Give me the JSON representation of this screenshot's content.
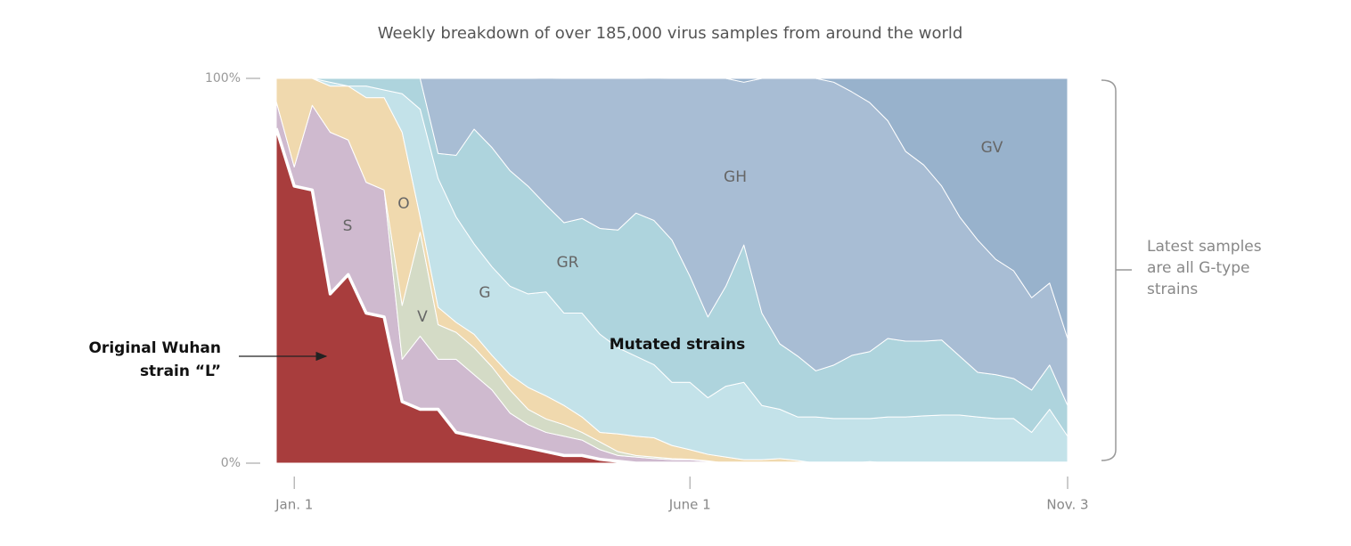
{
  "chart_data": {
    "type": "stacked_area",
    "title": "Weekly breakdown of over 185,000 virus samples from around the world",
    "categories": [
      null,
      "Jan. 1",
      null,
      null,
      null,
      null,
      null,
      null,
      null,
      null,
      null,
      null,
      null,
      null,
      null,
      null,
      null,
      null,
      null,
      null,
      null,
      null,
      null,
      "June 1",
      null,
      null,
      null,
      null,
      null,
      null,
      null,
      null,
      null,
      null,
      null,
      null,
      null,
      null,
      null,
      null,
      null,
      null,
      null,
      null,
      "Nov. 3"
    ],
    "ylim": [
      0,
      100
    ],
    "yticks": [
      {
        "value": 0,
        "label": "0%"
      },
      {
        "value": 100,
        "label": "100%"
      }
    ],
    "series": [
      {
        "color": "#a83d3d",
        "values": [
          87,
          72,
          71,
          44,
          49,
          39,
          38,
          16,
          14,
          14,
          8,
          7,
          6,
          5,
          4,
          3,
          2,
          2,
          1,
          0.5,
          0,
          0,
          0,
          0,
          0,
          0,
          0,
          0,
          0,
          0,
          0,
          0,
          0,
          0,
          0,
          0,
          0,
          0,
          0,
          0,
          0,
          0,
          0,
          0,
          0
        ]
      },
      {
        "name": "S",
        "color": "#cfbacf",
        "values": [
          7,
          5,
          22,
          42,
          35,
          34,
          33,
          11,
          19,
          13,
          19,
          16,
          13,
          8,
          6,
          5,
          5,
          4,
          2.5,
          1.5,
          1.6,
          1.2,
          0.9,
          0.9,
          0.5,
          0,
          0,
          0,
          0,
          0,
          0,
          0,
          0,
          0,
          0,
          0,
          0,
          0,
          0,
          0,
          0,
          0,
          0,
          0,
          0
        ]
      },
      {
        "name": "V",
        "color": "#d4dbc6",
        "values": [
          0,
          0,
          0,
          0,
          0,
          0,
          0,
          14,
          27,
          9,
          7,
          7,
          6,
          6,
          4,
          3.5,
          3,
          2,
          2,
          1,
          0.4,
          0.4,
          0.3,
          0.1,
          0.1,
          0,
          0,
          0,
          0,
          0,
          0,
          0,
          0,
          0,
          0,
          0,
          0,
          0,
          0,
          0,
          0,
          0,
          0,
          0,
          0
        ]
      },
      {
        "name": "O",
        "color": "#f0d9ae",
        "values": [
          6,
          23,
          7,
          12,
          14,
          22,
          24,
          45,
          4,
          4.5,
          2.6,
          3.5,
          3,
          4,
          5.7,
          6,
          5,
          4,
          2.5,
          4.6,
          5,
          5,
          3.4,
          2.5,
          1.7,
          1.6,
          0.9,
          0.9,
          1.2,
          0.7,
          0,
          0,
          0,
          0.4,
          0,
          0,
          0,
          0,
          0,
          0,
          0,
          0,
          0,
          0,
          0
        ]
      },
      {
        "name": "G",
        "color": "#c3e2e9",
        "values": [
          0,
          0,
          0,
          1,
          0,
          3,
          2,
          10,
          28,
          33.5,
          27.4,
          23.5,
          23,
          23,
          24.3,
          27,
          24,
          27,
          25.5,
          22.4,
          20.8,
          19,
          16.4,
          17.5,
          14.7,
          18.4,
          20.1,
          14.1,
          12.8,
          11.3,
          12,
          11.6,
          11.6,
          11.2,
          12,
          12,
          12.3,
          12.5,
          12.5,
          12,
          11.6,
          11.6,
          8,
          14,
          7
        ]
      },
      {
        "name": "GR",
        "color": "#aed4dd",
        "values": [
          0,
          0,
          0,
          1,
          2,
          2,
          3,
          4,
          8,
          6.5,
          16,
          29.8,
          31,
          30,
          28,
          22.6,
          23.5,
          24.6,
          27.5,
          30.6,
          37.2,
          37.5,
          37,
          27.6,
          21,
          26,
          35.7,
          24,
          17,
          15.8,
          12,
          13.9,
          16.4,
          17.4,
          20.4,
          19.7,
          19.4,
          19.5,
          15.3,
          11.6,
          11.4,
          10.4,
          11,
          11.5,
          8
        ]
      },
      {
        "name": "GH",
        "color": "#a8bdd4",
        "values": [
          0,
          0,
          0,
          0,
          0,
          0,
          0,
          0,
          0,
          19.5,
          20,
          13.2,
          18,
          24,
          28,
          33,
          37.5,
          36.4,
          39,
          39.4,
          35,
          37,
          42,
          51.4,
          62,
          54,
          42.3,
          61,
          69,
          72.2,
          76,
          73.5,
          68.5,
          64.7,
          56.6,
          49.3,
          45.8,
          40,
          36.2,
          34.4,
          30,
          28,
          24,
          21.3,
          17.4
        ]
      },
      {
        "name": "GV",
        "color": "#98b2cc",
        "values": [
          0,
          0,
          0,
          0,
          0,
          0,
          0,
          0,
          0,
          0,
          0,
          0,
          0,
          0,
          0,
          0,
          0,
          0,
          0,
          0,
          0,
          0,
          0,
          0,
          0,
          0,
          1,
          0,
          0,
          0,
          0,
          1,
          3.5,
          6.3,
          11,
          19,
          22.5,
          28,
          36,
          42,
          47,
          50,
          57,
          53.2,
          67.6
        ]
      }
    ],
    "annotations": [
      {
        "text": [
          "Original Wuhan",
          "strain “L”"
        ]
      },
      {
        "text": [
          "Mutated strains"
        ]
      },
      {
        "text": [
          "Latest samples",
          "are all G-type",
          "strains"
        ]
      }
    ]
  }
}
